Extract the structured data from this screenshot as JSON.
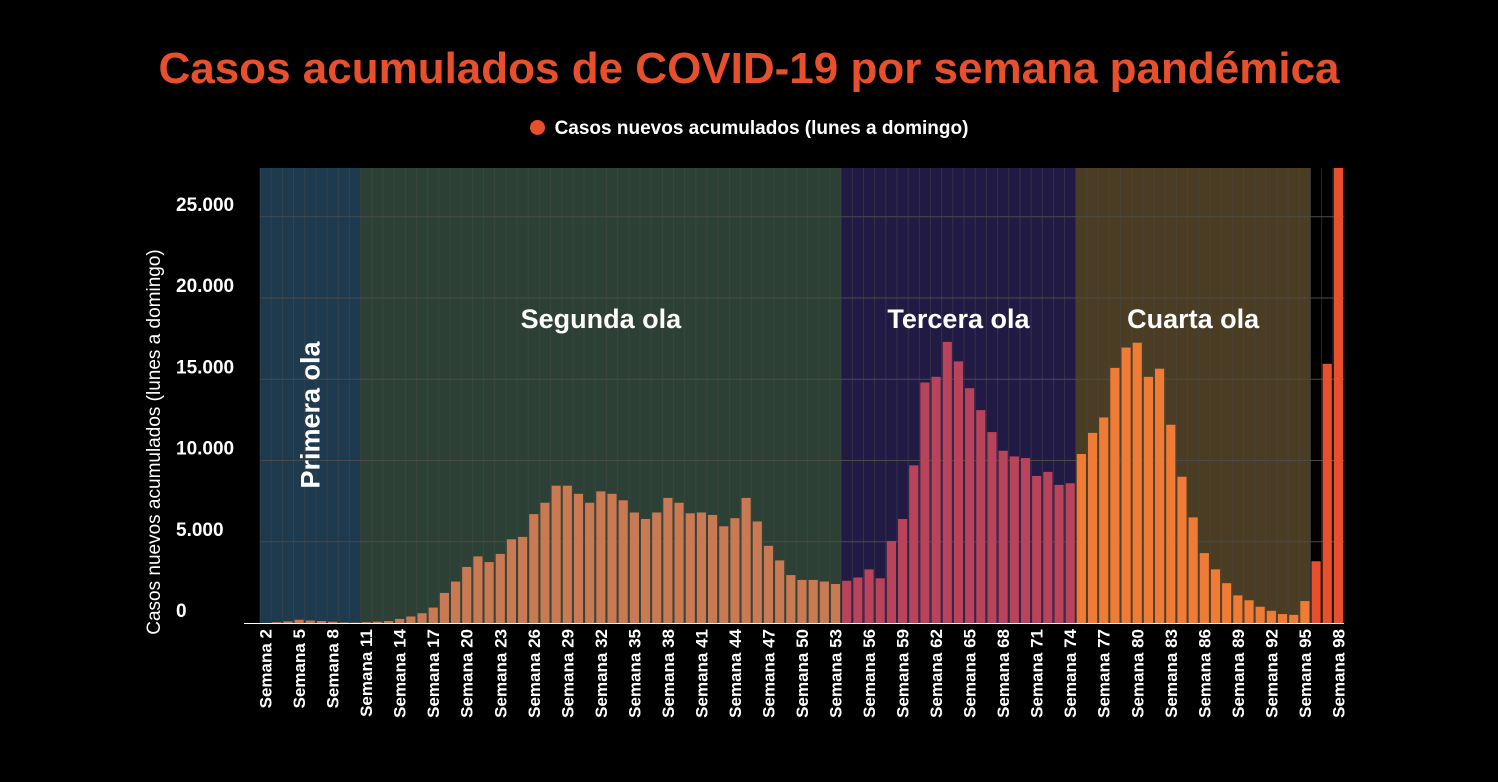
{
  "chart_data": {
    "type": "bar",
    "title": "Casos acumulados de COVID-19 por semana pandémica",
    "legend": [
      "Casos nuevos acumulados (lunes a domingo)"
    ],
    "legend_position": "top-center",
    "xlabel": "",
    "ylabel": "Casos nuevos acumulados (lunes a domingo)",
    "ylim": [
      0,
      28000
    ],
    "yticks": [
      0,
      5000,
      10000,
      15000,
      20000,
      25000
    ],
    "ytick_labels": [
      "0",
      "5.000",
      "10.000",
      "15.000",
      "20.000",
      "25.000"
    ],
    "xtick_labels": [
      "Semana 2",
      "Semana 5",
      "Semana 8",
      "Semana 11",
      "Semana 14",
      "Semana 17",
      "Semana 20",
      "Semana 23",
      "Semana 26",
      "Semana 29",
      "Semana 32",
      "Semana 35",
      "Semana 38",
      "Semana 41",
      "Semana 44",
      "Semana 47",
      "Semana 50",
      "Semana 53",
      "Semana 56",
      "Semana 59",
      "Semana 62",
      "Semana 65",
      "Semana 68",
      "Semana 71",
      "Semana 74",
      "Semana 77",
      "Semana 80",
      "Semana 83",
      "Semana 86",
      "Semana 89",
      "Semana 92",
      "Semana 95",
      "Semana 98"
    ],
    "grid": true,
    "first_week": 2,
    "weeks": [
      2,
      3,
      4,
      5,
      6,
      7,
      8,
      9,
      10,
      11,
      12,
      13,
      14,
      15,
      16,
      17,
      18,
      19,
      20,
      21,
      22,
      23,
      24,
      25,
      26,
      27,
      28,
      29,
      30,
      31,
      32,
      33,
      34,
      35,
      36,
      37,
      38,
      39,
      40,
      41,
      42,
      43,
      44,
      45,
      46,
      47,
      48,
      49,
      50,
      51,
      52,
      53,
      54,
      55,
      56,
      57,
      58,
      59,
      60,
      61,
      62,
      63,
      64,
      65,
      66,
      67,
      68,
      69,
      70,
      71,
      72,
      73,
      74,
      75,
      76,
      77,
      78,
      79,
      80,
      81,
      82,
      83,
      84,
      85,
      86,
      87,
      88,
      89,
      90,
      91,
      92,
      93,
      94,
      95,
      96,
      97,
      98
    ],
    "values": [
      0,
      50,
      100,
      200,
      150,
      120,
      80,
      30,
      20,
      50,
      80,
      120,
      250,
      400,
      600,
      950,
      1850,
      2550,
      3450,
      4100,
      3750,
      4250,
      5150,
      5300,
      6700,
      7400,
      8450,
      8450,
      7950,
      7400,
      8100,
      7950,
      7550,
      6800,
      6400,
      6800,
      7700,
      7400,
      6750,
      6800,
      6650,
      5950,
      6450,
      7700,
      6250,
      4750,
      3850,
      2950,
      2650,
      2650,
      2550,
      2400,
      2600,
      2800,
      3300,
      2750,
      5050,
      6400,
      9700,
      14800,
      15150,
      17300,
      16100,
      14450,
      13100,
      11750,
      10600,
      10250,
      10150,
      9050,
      9300,
      8500,
      8600,
      10400,
      11700,
      12650,
      15700,
      16950,
      17250,
      15150,
      15650,
      12200,
      9000,
      6500,
      4300,
      3300,
      2450,
      1700,
      1400,
      1000,
      750,
      550,
      500,
      1350,
      3800,
      15950,
      28000
    ],
    "waves": [
      {
        "name": "Primera ola",
        "from_week": 2,
        "to_week": 10,
        "color": "#1e3a4e",
        "bar_color": "#d0784a",
        "orientation": "vertical"
      },
      {
        "name": "Segunda ola",
        "from_week": 11,
        "to_week": 53,
        "color": "#2d4036",
        "bar_color": "#c97a52",
        "orientation": "horizontal"
      },
      {
        "name": "Tercera ola",
        "from_week": 54,
        "to_week": 74,
        "color": "#211a44",
        "bar_color": "#b9435a",
        "orientation": "horizontal"
      },
      {
        "name": "Cuarta ola",
        "from_week": 75,
        "to_week": 95,
        "color": "#4a3d24",
        "bar_color": "#ef7b35",
        "orientation": "horizontal"
      },
      {
        "name": "",
        "from_week": 96,
        "to_week": 98,
        "color": "#000000",
        "bar_color": "#e8502d",
        "orientation": "none"
      }
    ],
    "colors": {
      "title": "#e8502d",
      "legend_dot": "#e8502d",
      "grid": "#4a4a4a",
      "axis_text": "#ffffff"
    }
  }
}
